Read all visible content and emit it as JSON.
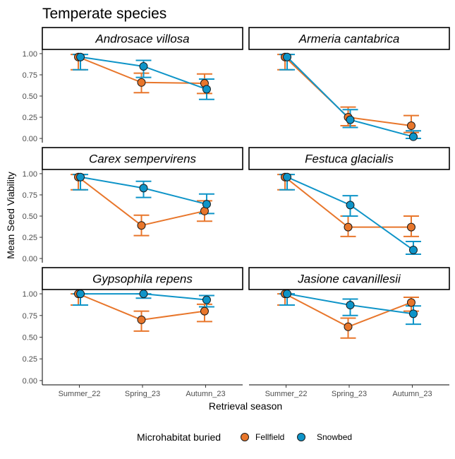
{
  "chart_data": {
    "type": "line",
    "title": "Temperate species",
    "xlabel": "Retrieval season",
    "ylabel": "Mean Seed Viability",
    "categories": [
      "Summer_22",
      "Spring_23",
      "Autumn_23"
    ],
    "ylim": [
      0,
      1
    ],
    "yticks": [
      "0.00",
      "0.25",
      "0.50",
      "0.75",
      "1.00"
    ],
    "legend": {
      "title": "Microhabitat buried",
      "placement": "bottom",
      "entries": [
        {
          "name": "Fellfield",
          "color": "#E8762B"
        },
        {
          "name": "Snowbed",
          "color": "#0E94C8"
        }
      ]
    },
    "panels": [
      {
        "species": "Androsace villosa",
        "series": [
          {
            "name": "Fellfield",
            "values": [
              0.96,
              0.66,
              0.65
            ],
            "lower": [
              0.81,
              0.54,
              0.53
            ],
            "upper": [
              0.99,
              0.77,
              0.76
            ]
          },
          {
            "name": "Snowbed",
            "values": [
              0.96,
              0.85,
              0.58
            ],
            "lower": [
              0.81,
              0.72,
              0.46
            ],
            "upper": [
              0.99,
              0.92,
              0.7
            ]
          }
        ]
      },
      {
        "species": "Armeria cantabrica",
        "series": [
          {
            "name": "Fellfield",
            "values": [
              0.96,
              0.25,
              0.15
            ],
            "lower": [
              0.81,
              0.15,
              0.07
            ],
            "upper": [
              0.99,
              0.37,
              0.27
            ]
          },
          {
            "name": "Snowbed",
            "values": [
              0.96,
              0.22,
              0.02
            ],
            "lower": [
              0.81,
              0.13,
              0.0
            ],
            "upper": [
              0.99,
              0.34,
              0.09
            ]
          }
        ]
      },
      {
        "species": "Carex sempervirens",
        "series": [
          {
            "name": "Fellfield",
            "values": [
              0.96,
              0.39,
              0.56
            ],
            "lower": [
              0.81,
              0.27,
              0.44
            ],
            "upper": [
              0.99,
              0.51,
              0.68
            ]
          },
          {
            "name": "Snowbed",
            "values": [
              0.96,
              0.83,
              0.64
            ],
            "lower": [
              0.81,
              0.72,
              0.53
            ],
            "upper": [
              0.99,
              0.91,
              0.76
            ]
          }
        ]
      },
      {
        "species": "Festuca glacialis",
        "series": [
          {
            "name": "Fellfield",
            "values": [
              0.96,
              0.37,
              0.37
            ],
            "lower": [
              0.81,
              0.26,
              0.26
            ],
            "upper": [
              0.99,
              0.5,
              0.5
            ]
          },
          {
            "name": "Snowbed",
            "values": [
              0.96,
              0.63,
              0.1
            ],
            "lower": [
              0.81,
              0.5,
              0.05
            ],
            "upper": [
              0.99,
              0.74,
              0.2
            ]
          }
        ]
      },
      {
        "species": "Gypsophila repens",
        "series": [
          {
            "name": "Fellfield",
            "values": [
              1.0,
              0.7,
              0.8
            ],
            "lower": [
              0.87,
              0.57,
              0.68
            ],
            "upper": [
              1.0,
              0.8,
              0.88
            ]
          },
          {
            "name": "Snowbed",
            "values": [
              1.0,
              1.0,
              0.93
            ],
            "lower": [
              0.87,
              0.95,
              0.85
            ],
            "upper": [
              1.0,
              1.0,
              0.98
            ]
          }
        ]
      },
      {
        "species": "Jasione cavanillesii",
        "series": [
          {
            "name": "Fellfield",
            "values": [
              1.0,
              0.62,
              0.9
            ],
            "lower": [
              0.87,
              0.49,
              0.8
            ],
            "upper": [
              1.0,
              0.72,
              0.96
            ]
          },
          {
            "name": "Snowbed",
            "values": [
              1.0,
              0.87,
              0.77
            ],
            "lower": [
              0.87,
              0.75,
              0.65
            ],
            "upper": [
              1.0,
              0.94,
              0.86
            ]
          }
        ]
      }
    ]
  }
}
